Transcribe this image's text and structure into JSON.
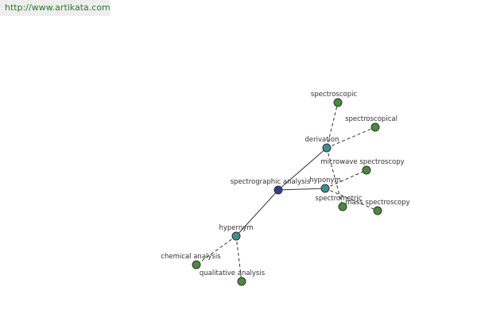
{
  "header": {
    "link": "http://www.artikata.com"
  },
  "nodes": [
    {
      "label": "spectrographic analysis"
    },
    {
      "label": "derivation"
    },
    {
      "label": "hyponym"
    },
    {
      "label": "hypernym"
    },
    {
      "label": "spectroscopic"
    },
    {
      "label": "spectroscopical"
    },
    {
      "label": "microwave spectroscopy"
    },
    {
      "label": "spectrometric"
    },
    {
      "label": "mass spectroscopy"
    },
    {
      "label": "chemical analysis"
    },
    {
      "label": "qualitative analysis"
    }
  ]
}
